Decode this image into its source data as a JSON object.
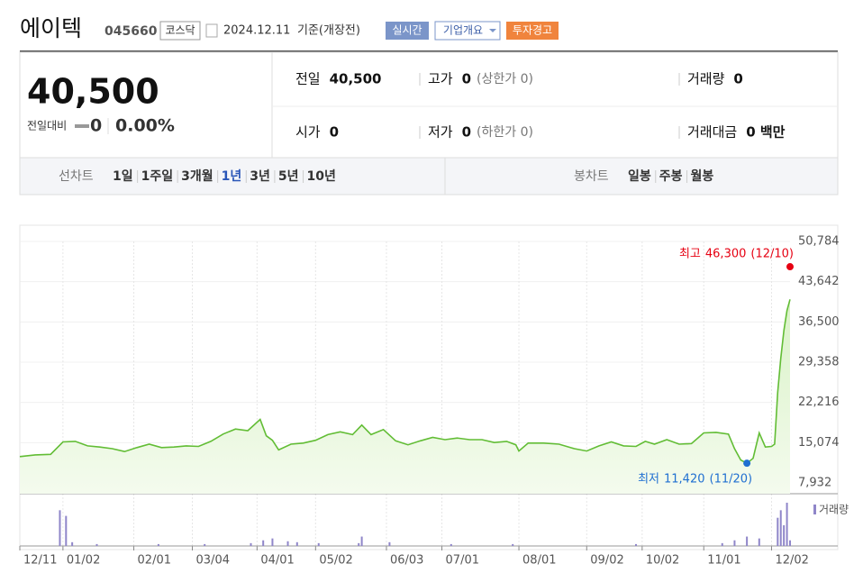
{
  "header": {
    "name": "에이텍",
    "code": "045660",
    "market": "코스닥",
    "date": "2024.12.11",
    "basis": "기준(개장전)",
    "buttons": [
      "실시간",
      "기업개요",
      "투자경고"
    ]
  },
  "summary": {
    "price": "40,500",
    "change_label": "전일대비",
    "change": "0",
    "change_rate": "0.00%"
  },
  "stats": [
    {
      "label": "전일",
      "value": "40,500"
    },
    {
      "label": "고가",
      "value": "0",
      "note": "(상한가 0)"
    },
    {
      "label": "거래량",
      "value": "0"
    },
    {
      "label": "시가",
      "value": "0"
    },
    {
      "label": "저가",
      "value": "0",
      "note": "(하한가 0)"
    },
    {
      "label": "거래대금",
      "value": "0 백만"
    }
  ],
  "tabs": {
    "line_label": "선차트",
    "line_items": [
      "1일",
      "1주일",
      "3개월",
      "1년",
      "3년",
      "5년",
      "10년"
    ],
    "active": 3,
    "candle_label": "봉차트",
    "candle_items": [
      "일봉",
      "주봉",
      "월봉"
    ]
  },
  "chart_data": {
    "type": "line",
    "grid": true,
    "xlim": [
      0,
      250
    ],
    "xticks": [
      {
        "value": 0,
        "label": "12/11"
      },
      {
        "value": 14,
        "label": "01/02"
      },
      {
        "value": 37,
        "label": "02/01"
      },
      {
        "value": 56,
        "label": "03/04"
      },
      {
        "value": 77,
        "label": "04/01"
      },
      {
        "value": 96,
        "label": "05/02"
      },
      {
        "value": 119,
        "label": "06/03"
      },
      {
        "value": 137,
        "label": "07/01"
      },
      {
        "value": 162,
        "label": "08/01"
      },
      {
        "value": 184,
        "label": "09/02"
      },
      {
        "value": 202,
        "label": "10/02"
      },
      {
        "value": 222,
        "label": "11/01"
      },
      {
        "value": 244,
        "label": "12/02"
      }
    ],
    "ylim": [
      6013,
      50784
    ],
    "yticks": [
      {
        "value": 7932,
        "label": "7,932"
      },
      {
        "value": 15074,
        "label": "15,074"
      },
      {
        "value": 22216,
        "label": "22,216"
      },
      {
        "value": 29358,
        "label": "29,358"
      },
      {
        "value": 36500,
        "label": "36,500"
      },
      {
        "value": 43642,
        "label": "43,642"
      },
      {
        "value": 50784,
        "label": "50,784"
      }
    ],
    "series": [
      {
        "color": "#62bd35",
        "x": [
          0,
          5,
          10,
          14,
          18,
          22,
          26,
          30,
          34,
          38,
          42,
          46,
          50,
          54,
          58,
          62,
          66,
          70,
          74,
          78,
          80,
          82,
          84,
          88,
          92,
          96,
          100,
          104,
          108,
          111,
          114,
          118,
          122,
          126,
          130,
          134,
          138,
          142,
          146,
          150,
          154,
          158,
          161,
          162,
          165,
          170,
          175,
          180,
          184,
          188,
          192,
          196,
          200,
          203,
          206,
          210,
          214,
          218,
          222,
          226,
          230,
          232,
          234,
          236,
          238,
          240,
          242,
          244,
          245,
          246,
          247,
          248,
          249,
          250
        ],
        "values": [
          12600,
          12900,
          13000,
          15200,
          15300,
          14500,
          14300,
          14000,
          13500,
          14200,
          14800,
          14200,
          14300,
          14500,
          14400,
          15300,
          16600,
          17500,
          17200,
          19200,
          16300,
          15500,
          13800,
          14800,
          15000,
          15500,
          16500,
          17000,
          16500,
          18200,
          16500,
          17400,
          15400,
          14700,
          15400,
          16000,
          15600,
          15900,
          15600,
          15600,
          15100,
          15300,
          14700,
          13600,
          15000,
          15000,
          14800,
          14000,
          13600,
          14500,
          15200,
          14500,
          14400,
          15300,
          14800,
          15600,
          14800,
          14900,
          16800,
          16900,
          16600,
          14000,
          12000,
          11420,
          12300,
          16800,
          14300,
          14400,
          14800,
          24000,
          30000,
          35000,
          38500,
          40500
        ]
      }
    ],
    "high": {
      "label": "최고",
      "x": 250,
      "value": 46300,
      "value_label": "46,300",
      "date": "(12/10)",
      "color": "#e60012"
    },
    "low": {
      "label": "최저",
      "x": 236,
      "value": 11420,
      "value_label": "11,420",
      "date": "(11/20)",
      "color": "#1f6fd1"
    },
    "volume": {
      "name": "거래량",
      "color": "#8f86c9",
      "ylim": [
        0,
        46
      ],
      "x": [
        13,
        15,
        17,
        25,
        45,
        60,
        75,
        79,
        82,
        87,
        90,
        97,
        110,
        111,
        120,
        140,
        160,
        200,
        228,
        232,
        236,
        240,
        246,
        247,
        248,
        249,
        250
      ],
      "values": [
        38,
        32,
        4,
        2,
        2,
        2,
        3,
        6,
        8,
        5,
        4,
        3,
        3,
        10,
        4,
        2,
        2,
        2,
        3,
        6,
        10,
        8,
        30,
        38,
        22,
        46,
        6
      ]
    }
  }
}
